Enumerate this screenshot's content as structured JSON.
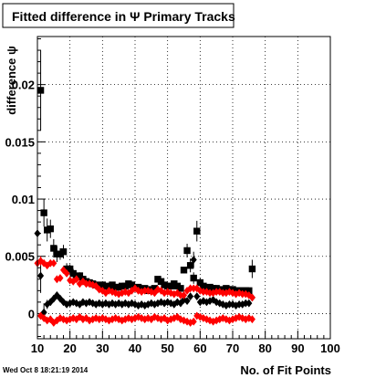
{
  "chart_data": {
    "type": "scatter",
    "title": "Fitted difference in  Ψ  Primary Tracks",
    "xlabel": "No. of Fit Points",
    "ylabel": "difference ψ",
    "timestamp": "Wed Oct  8 18:21:19 2014",
    "xlim": [
      10,
      100
    ],
    "ylim": [
      -0.0022,
      0.0242
    ],
    "xticks": [
      "10",
      "20",
      "30",
      "40",
      "50",
      "60",
      "70",
      "80",
      "90",
      "100"
    ],
    "yticks": [
      {
        "v": 0,
        "label": "0"
      },
      {
        "v": 0.005,
        "label": "0.005"
      },
      {
        "v": 0.01,
        "label": "0.01"
      },
      {
        "v": 0.015,
        "label": "0.015"
      },
      {
        "v": 0.02,
        "label": "0.02"
      }
    ],
    "grid": true,
    "colors": {
      "black": "#000000",
      "red": "#ff0000"
    },
    "series": [
      {
        "marker": "square",
        "color": "#000000",
        "x": [
          11,
          12,
          13,
          14,
          15,
          16,
          17,
          18,
          19,
          20,
          21,
          22,
          23,
          24,
          25,
          26,
          27,
          28,
          29,
          30,
          31,
          32,
          33,
          34,
          35,
          36,
          37,
          38,
          39,
          40,
          41,
          42,
          43,
          44,
          45,
          46,
          47,
          48,
          49,
          50,
          51,
          52,
          53,
          54,
          55,
          56,
          57,
          58,
          59,
          60,
          61,
          62,
          63,
          64,
          65,
          66,
          67,
          68,
          69,
          70,
          71,
          72,
          73,
          74,
          75,
          76
        ],
        "y": [
          0.0195,
          0.0088,
          0.0073,
          0.0074,
          0.0057,
          0.0052,
          0.0052,
          0.0054,
          0.0039,
          0.0039,
          0.0035,
          0.0032,
          0.0033,
          0.003,
          0.0028,
          0.0027,
          0.0026,
          0.0025,
          0.0024,
          0.0025,
          0.0024,
          0.0023,
          0.0025,
          0.0023,
          0.0023,
          0.0024,
          0.0024,
          0.0026,
          0.0025,
          0.0022,
          0.0023,
          0.0021,
          0.0022,
          0.002,
          0.0021,
          0.0022,
          0.003,
          0.0028,
          0.0025,
          0.0024,
          0.0024,
          0.0026,
          0.0024,
          0.0022,
          0.0038,
          0.0055,
          0.0042,
          0.0031,
          0.0072,
          0.0027,
          0.0024,
          0.0021,
          0.0023,
          0.0022,
          0.0022,
          0.002,
          0.0021,
          0.0022,
          0.0021,
          0.0021,
          0.002,
          0.002,
          0.002,
          0.002,
          0.002,
          0.0039
        ],
        "err": [
          0.0035,
          0.0012,
          0.001,
          0.0008,
          0.0008,
          0.0007,
          0.0005,
          0.0006,
          0.0005,
          0.0004,
          0.0004,
          0.0003,
          0.0003,
          0.0003,
          0.0003,
          0.0003,
          0.0003,
          0.0003,
          0.0002,
          0.0002,
          0.0002,
          0.0002,
          0.0002,
          0.0002,
          0.0002,
          0.0002,
          0.0002,
          0.0002,
          0.0002,
          0.0002,
          0.0002,
          0.0002,
          0.0002,
          0.0002,
          0.0002,
          0.0002,
          0.0002,
          0.0002,
          0.0002,
          0.0002,
          0.0002,
          0.0002,
          0.0002,
          0.0002,
          0.0002,
          0.0006,
          0.0006,
          0.0005,
          0.0009,
          0.0004,
          0.0003,
          0.0002,
          0.0002,
          0.0002,
          0.0002,
          0.0002,
          0.0002,
          0.0002,
          0.0002,
          0.0002,
          0.0002,
          0.0002,
          0.0002,
          0.0002,
          0.0002,
          0.0008
        ]
      },
      {
        "marker": "diamond",
        "color": "#000000",
        "x": [
          10,
          11,
          12,
          13,
          14,
          15,
          16,
          17,
          18,
          19,
          20,
          21,
          22,
          23,
          24,
          25,
          26,
          27,
          28,
          29,
          30,
          31,
          32,
          33,
          34,
          35,
          36,
          37,
          38,
          39,
          40,
          41,
          42,
          43,
          44,
          45,
          46,
          47,
          48,
          49,
          50,
          51,
          52,
          53,
          54,
          55,
          56,
          57,
          58,
          59,
          60,
          61,
          62,
          63,
          64,
          65,
          66,
          67,
          68,
          69,
          70,
          71,
          72,
          73,
          74,
          75,
          76
        ],
        "y": [
          0.007,
          0.0033,
          0.0001,
          0.0008,
          0.001,
          0.0013,
          0.0016,
          0.0013,
          0.001,
          0.0008,
          0.0009,
          0.001,
          0.0009,
          0.0008,
          0.001,
          0.0009,
          0.001,
          0.0009,
          0.0008,
          0.0009,
          0.0008,
          0.0009,
          0.0008,
          0.0009,
          0.0008,
          0.0009,
          0.0008,
          0.0009,
          0.0008,
          0.0009,
          0.0008,
          0.0007,
          0.0008,
          0.0007,
          0.0008,
          0.0009,
          0.0008,
          0.0009,
          0.001,
          0.0009,
          0.001,
          0.0009,
          0.0008,
          0.001,
          0.0009,
          0.0012,
          0.0011,
          0.0015,
          0.0047,
          0.0015,
          0.001,
          0.0011,
          0.001,
          0.0011,
          0.0012,
          0.001,
          0.0009,
          0.0008,
          0.0007,
          0.0008,
          0.0008,
          0.0007,
          0.0008,
          0.0008,
          0.0009,
          0.0009,
          0.0014
        ],
        "err": [
          0.003,
          0.0015,
          0.0008,
          0.0004,
          0.0003,
          0.0003,
          0.0003,
          0.0002,
          0.0002,
          0.0002,
          0.0002,
          0.0002,
          0.0002,
          0.0002,
          0.0002,
          0.0002,
          0.0002,
          0.0002,
          0.0002,
          0.0002,
          0.0002,
          0.0002,
          0.0002,
          0.0002,
          0.0002,
          0.0002,
          0.0002,
          0.0002,
          0.0002,
          0.0002,
          0.0002,
          0.0002,
          0.0002,
          0.0002,
          0.0002,
          0.0002,
          0.0002,
          0.0002,
          0.0002,
          0.0002,
          0.0002,
          0.0002,
          0.0002,
          0.0002,
          0.0002,
          0.0003,
          0.0003,
          0.0003,
          0.0007,
          0.0003,
          0.0002,
          0.0002,
          0.0002,
          0.0002,
          0.0002,
          0.0002,
          0.0002,
          0.0002,
          0.0002,
          0.0002,
          0.0002,
          0.0002,
          0.0002,
          0.0002,
          0.0002,
          0.0002,
          0.0003
        ]
      },
      {
        "marker": "diamond",
        "color": "#ff0000",
        "x": [
          10,
          11,
          12,
          13,
          14,
          15,
          16,
          17,
          18,
          19,
          20,
          21,
          22,
          23,
          24,
          25,
          26,
          27,
          28,
          29,
          30,
          31,
          32,
          33,
          34,
          35,
          36,
          37,
          38,
          39,
          40,
          41,
          42,
          43,
          44,
          45,
          46,
          47,
          48,
          49,
          50,
          51,
          52,
          53,
          54,
          55,
          56,
          57,
          58,
          59,
          60,
          61,
          62,
          63,
          64,
          65,
          66,
          67,
          68,
          69,
          70,
          71,
          72,
          73,
          74,
          75,
          76
        ],
        "y": [
          0.0044,
          0.0046,
          0.0044,
          0.0042,
          0.0044,
          0.0044,
          0.003,
          0.0031,
          0.0038,
          0.0035,
          0.0029,
          0.0028,
          0.003,
          0.0026,
          0.0028,
          0.0026,
          0.0026,
          0.0025,
          0.0024,
          0.0021,
          0.002,
          0.0018,
          0.002,
          0.0019,
          0.0018,
          0.0017,
          0.0018,
          0.0019,
          0.0018,
          0.002,
          0.0022,
          0.002,
          0.0019,
          0.002,
          0.002,
          0.0019,
          0.0018,
          0.0021,
          0.002,
          0.0018,
          0.0019,
          0.0018,
          0.0017,
          0.0018,
          0.0016,
          0.0016,
          0.002,
          0.0022,
          0.0022,
          0.0022,
          0.002,
          0.0019,
          0.0019,
          0.0018,
          0.0018,
          0.0019,
          0.0019,
          0.0018,
          0.0018,
          0.0019,
          0.0018,
          0.0017,
          0.0018,
          0.0017,
          0.0017,
          0.0016,
          0.0014
        ],
        "err": [
          0.0005,
          0.0004,
          0.0003,
          0.0003,
          0.0003,
          0.0003,
          0.0003,
          0.0002,
          0.0002,
          0.0002,
          0.0002,
          0.0002,
          0.0002,
          0.0002,
          0.0002,
          0.0002,
          0.0002,
          0.0002,
          0.0002,
          0.0002,
          0.0002,
          0.0002,
          0.0002,
          0.0002,
          0.0002,
          0.0002,
          0.0002,
          0.0002,
          0.0002,
          0.0002,
          0.0002,
          0.0002,
          0.0002,
          0.0002,
          0.0002,
          0.0002,
          0.0002,
          0.0002,
          0.0002,
          0.0002,
          0.0002,
          0.0002,
          0.0002,
          0.0002,
          0.0002,
          0.0002,
          0.0002,
          0.0002,
          0.0002,
          0.0002,
          0.0002,
          0.0002,
          0.0002,
          0.0002,
          0.0002,
          0.0002,
          0.0002,
          0.0002,
          0.0002,
          0.0002,
          0.0002,
          0.0002,
          0.0002,
          0.0002,
          0.0002,
          0.0002,
          0.0002
        ]
      },
      {
        "marker": "diamond",
        "color": "#ff0000",
        "x": [
          11,
          12,
          13,
          14,
          15,
          16,
          17,
          18,
          19,
          20,
          21,
          22,
          23,
          24,
          25,
          26,
          27,
          28,
          29,
          30,
          31,
          32,
          33,
          34,
          35,
          36,
          37,
          38,
          39,
          40,
          41,
          42,
          43,
          44,
          45,
          46,
          47,
          48,
          49,
          50,
          51,
          52,
          53,
          54,
          55,
          56,
          57,
          58,
          59,
          60,
          61,
          62,
          63,
          64,
          65,
          66,
          67,
          68,
          69,
          70,
          71,
          72,
          73,
          74,
          75,
          76
        ],
        "y": [
          -0.0002,
          -0.0004,
          -0.0006,
          -0.0005,
          -0.0008,
          -0.0006,
          -0.0004,
          -0.0005,
          -0.0006,
          -0.0005,
          -0.0004,
          -0.0005,
          -0.0003,
          -0.0005,
          -0.0004,
          -0.0006,
          -0.0005,
          -0.0004,
          -0.0005,
          -0.0004,
          -0.0005,
          -0.0006,
          -0.0005,
          -0.0004,
          -0.0005,
          -0.0006,
          -0.0005,
          -0.0004,
          -0.0005,
          -0.0004,
          -0.0003,
          -0.0004,
          -0.0005,
          -0.0004,
          -0.0005,
          -0.0003,
          -0.0004,
          -0.0005,
          -0.0004,
          -0.0006,
          -0.0005,
          -0.0004,
          -0.0003,
          -0.0005,
          -0.0006,
          -0.0007,
          -0.0008,
          -0.0007,
          -0.0002,
          -0.0003,
          -0.0004,
          -0.0005,
          -0.0006,
          -0.0007,
          -0.0006,
          -0.0005,
          -0.0004,
          -0.0005,
          -0.0006,
          -0.0005,
          -0.0004,
          -0.0003,
          -0.0004,
          -0.0005,
          -0.0004,
          -0.0005
        ],
        "err": [
          0.0003,
          0.0003,
          0.0002,
          0.0002,
          0.0002,
          0.0002,
          0.0002,
          0.0002,
          0.0002,
          0.0002,
          0.0002,
          0.0002,
          0.0002,
          0.0002,
          0.0002,
          0.0002,
          0.0002,
          0.0002,
          0.0002,
          0.0002,
          0.0002,
          0.0002,
          0.0002,
          0.0002,
          0.0002,
          0.0002,
          0.0002,
          0.0002,
          0.0002,
          0.0002,
          0.0002,
          0.0002,
          0.0002,
          0.0002,
          0.0002,
          0.0002,
          0.0002,
          0.0002,
          0.0002,
          0.0002,
          0.0002,
          0.0002,
          0.0002,
          0.0002,
          0.0002,
          0.0002,
          0.0002,
          0.0002,
          0.0002,
          0.0002,
          0.0002,
          0.0002,
          0.0002,
          0.0002,
          0.0002,
          0.0002,
          0.0002,
          0.0002,
          0.0002,
          0.0002,
          0.0002,
          0.0002,
          0.0002,
          0.0002,
          0.0002,
          0.0002
        ]
      }
    ]
  }
}
